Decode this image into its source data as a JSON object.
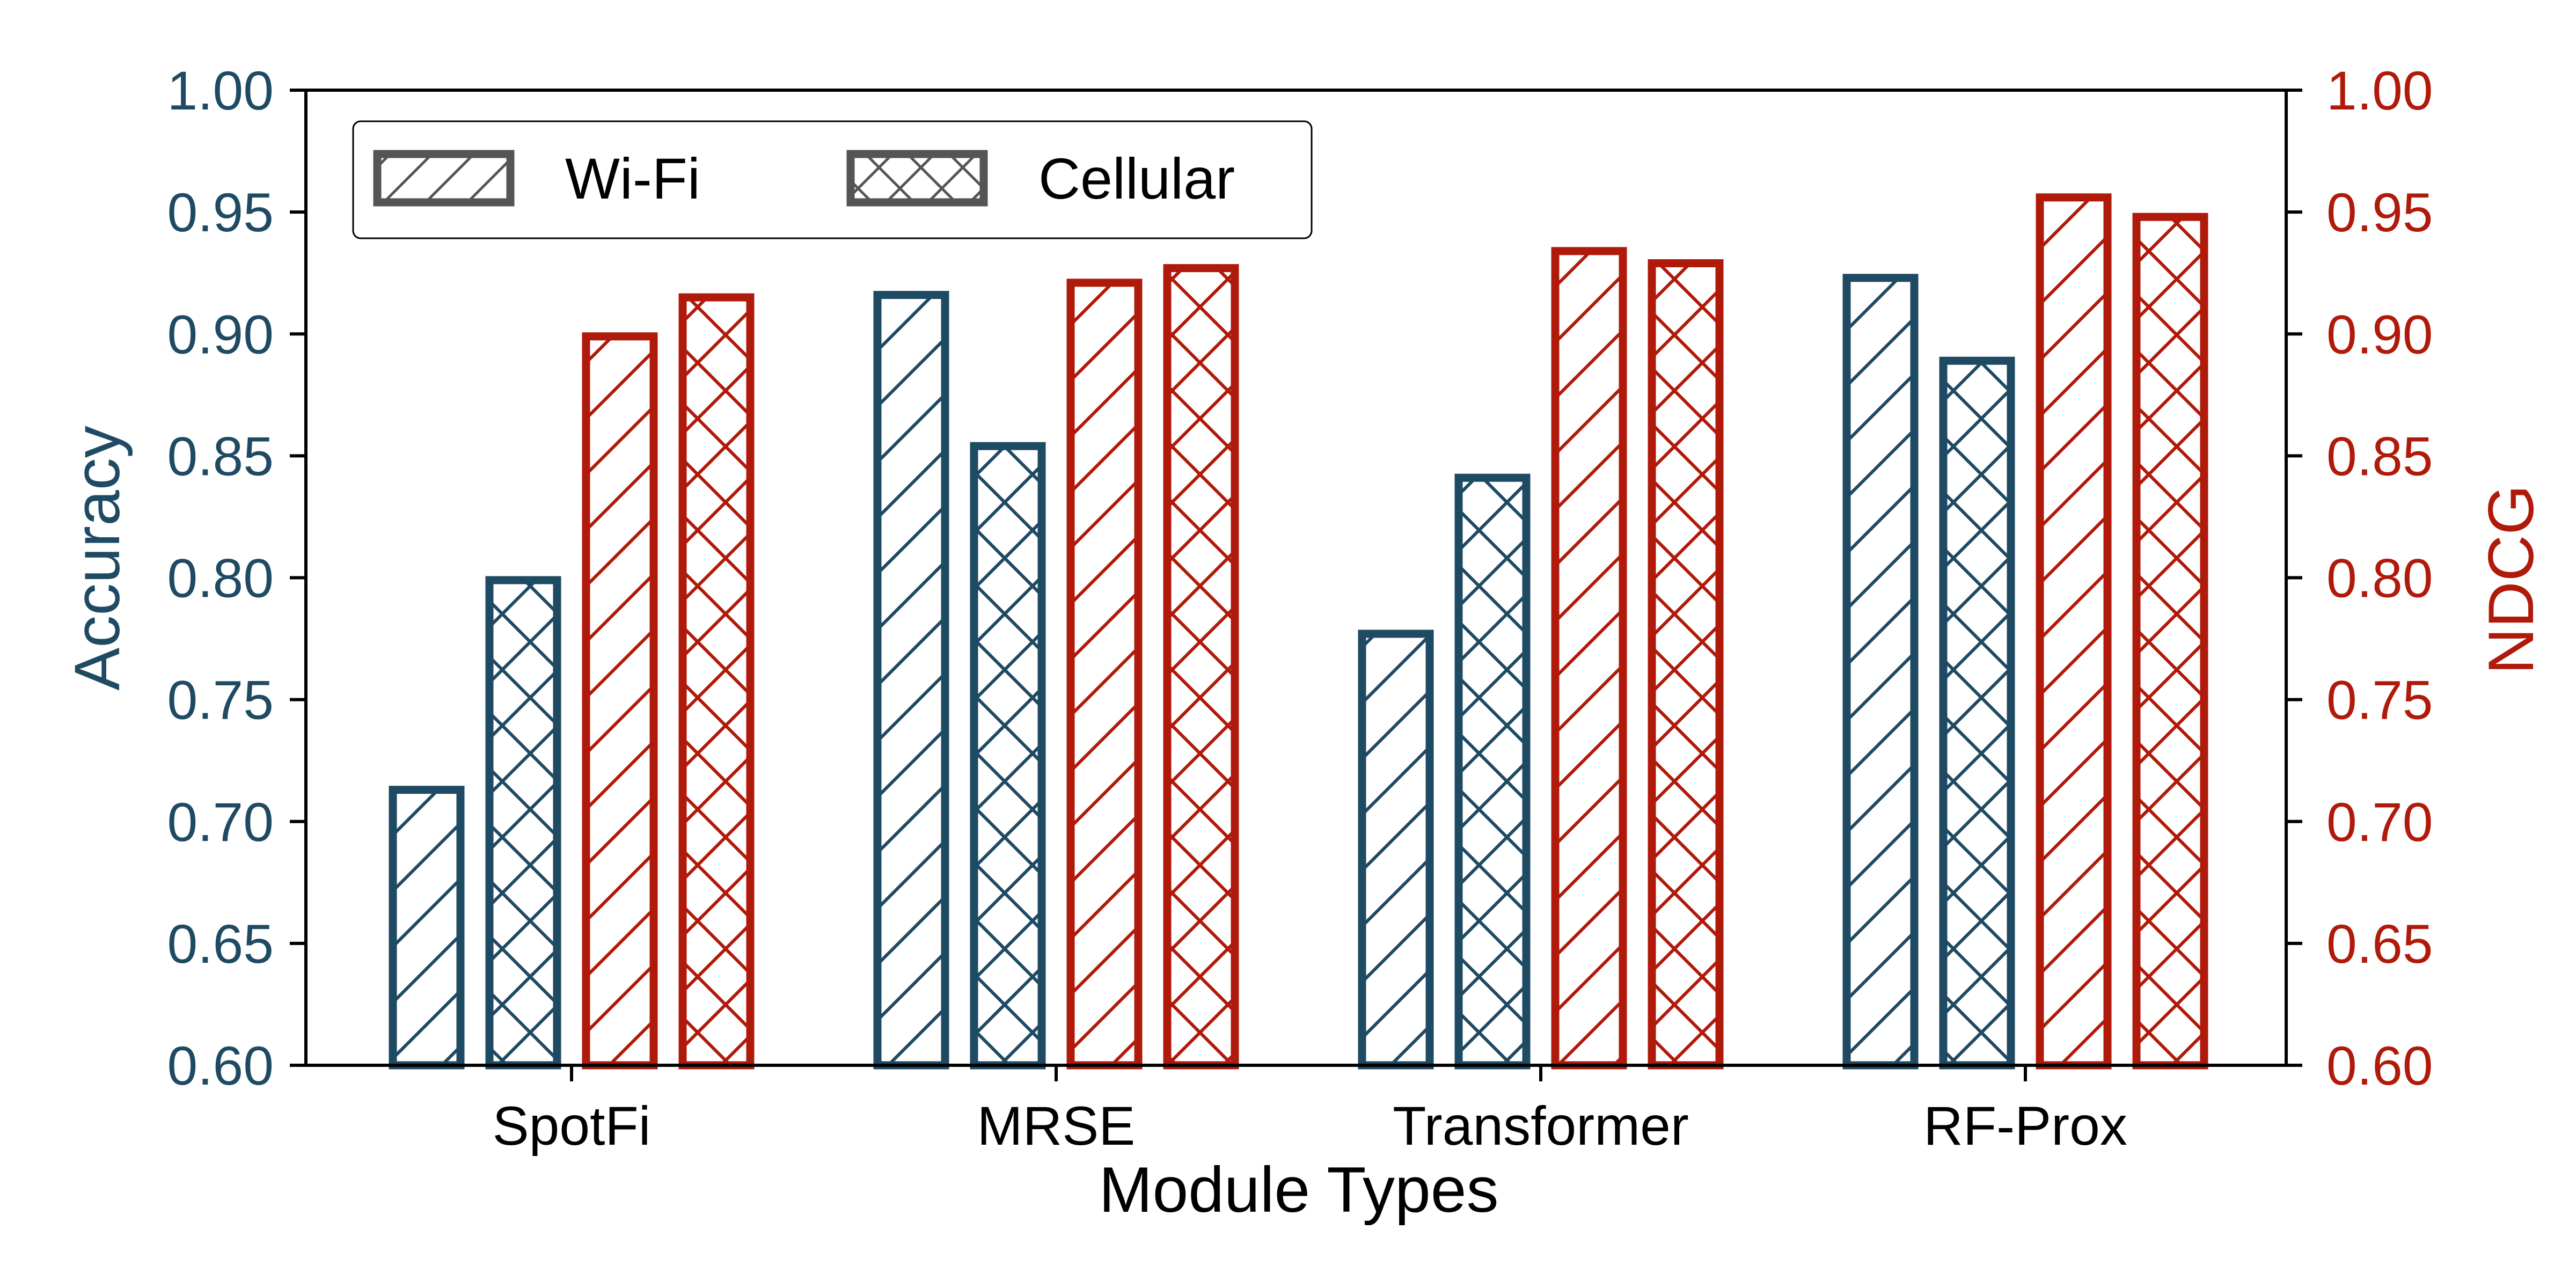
{
  "chart_data": {
    "type": "bar",
    "categories": [
      "SpotFi",
      "MRSE",
      "Transformer",
      "RF-Prox"
    ],
    "xlabel": "Module Types",
    "ylabel_left": "Accuracy",
    "ylabel_right": "NDCG",
    "ylim_left": [
      0.6,
      1.0
    ],
    "ylim_right": [
      0.6,
      1.0
    ],
    "yticks_left": [
      "0.60",
      "0.65",
      "0.70",
      "0.75",
      "0.80",
      "0.85",
      "0.90",
      "0.95",
      "1.00"
    ],
    "yticks_right": [
      "0.60",
      "0.65",
      "0.70",
      "0.75",
      "0.80",
      "0.85",
      "0.90",
      "0.95",
      "1.00"
    ],
    "series": [
      {
        "metric": "Accuracy",
        "legend": "Wi-Fi",
        "hatch": "slash",
        "color": "#1f4a63",
        "axis": "left",
        "values": [
          0.713,
          0.916,
          0.777,
          0.923
        ]
      },
      {
        "metric": "Accuracy",
        "legend": "Cellular",
        "hatch": "cross",
        "color": "#1f4a63",
        "axis": "left",
        "values": [
          0.799,
          0.854,
          0.841,
          0.889
        ]
      },
      {
        "metric": "NDCG",
        "legend": "Wi-Fi",
        "hatch": "slash",
        "color": "#b01a0a",
        "axis": "right",
        "values": [
          0.899,
          0.921,
          0.934,
          0.956
        ]
      },
      {
        "metric": "NDCG",
        "legend": "Cellular",
        "hatch": "cross",
        "color": "#b01a0a",
        "axis": "right",
        "values": [
          0.915,
          0.927,
          0.929,
          0.948
        ]
      }
    ],
    "legend": {
      "placement": "top-left",
      "entries": [
        {
          "label": "Wi-Fi",
          "hatch": "slash"
        },
        {
          "label": "Cellular",
          "hatch": "cross"
        }
      ],
      "color": "#555555"
    },
    "grid": false,
    "colors": {
      "accuracy": "#1f4a63",
      "ndcg": "#b01a0a",
      "axis": "#000000"
    }
  }
}
